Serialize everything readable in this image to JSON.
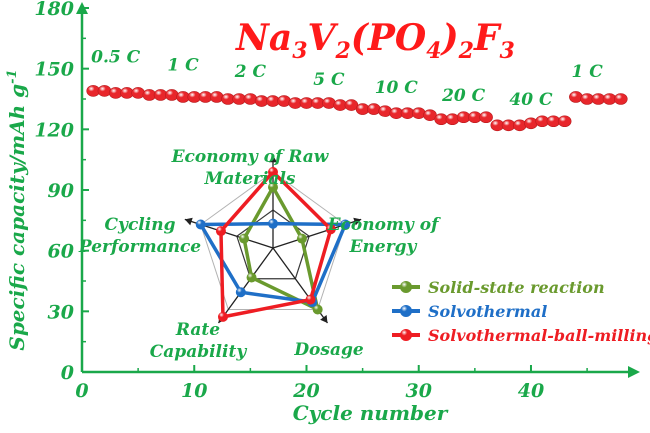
{
  "colors": {
    "axis": "#1aa84a",
    "title": "#ff1a1a",
    "capacity_dots": "#e8262b",
    "rate_labels": "#1aa84a",
    "web": "#222222",
    "radar_labels": "#1aa84a",
    "solid_state": "#6a9a2e",
    "solvothermal": "#1f6fc7",
    "ball_milling": "#ee1d23"
  },
  "chart_data": [
    {
      "type": "scatter",
      "title": {
        "base1": "Na",
        "sub1": "3",
        "base2": "V",
        "sub2": "2",
        "base3": "(PO",
        "sub3": "4",
        "base4": ")",
        "sub4": "2",
        "base5": "F",
        "sub5": "3"
      },
      "xlabel": "Cycle number",
      "ylabel": "Specific capacity/mAh g",
      "ylabel_sup": "-1",
      "xlim": [
        0,
        49
      ],
      "ylim": [
        0,
        180
      ],
      "xticks": [
        "0",
        "10",
        "20",
        "30",
        "40"
      ],
      "xtick_values": [
        0,
        10,
        20,
        30,
        40
      ],
      "yticks": [
        "0",
        "30",
        "60",
        "90",
        "120",
        "150",
        "180"
      ],
      "ytick_values": [
        0,
        30,
        60,
        90,
        120,
        150,
        180
      ],
      "grid": false,
      "series": [
        {
          "x": [
            1,
            2,
            3,
            4,
            5,
            6,
            7,
            8,
            9,
            10,
            11,
            12,
            13,
            14,
            15,
            16,
            17,
            18,
            19,
            20,
            21,
            22,
            23,
            24,
            25,
            26,
            27,
            28,
            29,
            30,
            31,
            32,
            33,
            34,
            35,
            36,
            37,
            38,
            39,
            40,
            41,
            42,
            43,
            44,
            45,
            46,
            47,
            48
          ],
          "y": [
            139,
            139,
            138,
            138,
            138,
            137,
            137,
            137,
            136,
            136,
            136,
            136,
            135,
            135,
            135,
            134,
            134,
            134,
            133,
            133,
            133,
            133,
            132,
            132,
            130,
            130,
            129,
            128,
            128,
            128,
            127,
            125,
            125,
            126,
            126,
            126,
            122,
            122,
            122,
            123,
            124,
            124,
            124,
            136,
            135,
            135,
            135,
            135
          ]
        }
      ],
      "rate_annotations": [
        {
          "label": "0.5 C",
          "x": 3,
          "y": 153
        },
        {
          "label": "1 C",
          "x": 9,
          "y": 149
        },
        {
          "label": "2 C",
          "x": 15,
          "y": 146
        },
        {
          "label": "5 C",
          "x": 22,
          "y": 142
        },
        {
          "label": "10 C",
          "x": 28,
          "y": 138
        },
        {
          "label": "20 C",
          "x": 34,
          "y": 134
        },
        {
          "label": "40 C",
          "x": 40,
          "y": 132
        },
        {
          "label": "1 C",
          "x": 45,
          "y": 146
        }
      ]
    },
    {
      "type": "radar",
      "axes": [
        "Economy of Raw Materials",
        "Economy of Energy",
        "Dosage",
        "Rate Capability",
        "Cycling Performance"
      ],
      "axis_labels": [
        {
          "lines": [
            "Economy of Raw",
            "Materials"
          ]
        },
        {
          "lines": [
            "Economy of",
            "Energy"
          ]
        },
        {
          "lines": [
            "Dosage"
          ]
        },
        {
          "lines": [
            "Rate",
            "Capability"
          ]
        },
        {
          "lines": [
            "Cycling",
            "Performance"
          ]
        }
      ],
      "scale_max": 1,
      "series": [
        {
          "name": "Solid-state reaction",
          "values": [
            0.8,
            0.4,
            1.0,
            0.48,
            0.4
          ]
        },
        {
          "name": "Solvothermal",
          "values": [
            0.32,
            1.0,
            0.88,
            0.72,
            1.0
          ]
        },
        {
          "name": "Solvothermal-ball-milling",
          "values": [
            1.0,
            0.8,
            0.84,
            1.12,
            0.72
          ]
        }
      ],
      "legend": {
        "placement": "right",
        "entries": [
          "Solid-state reaction",
          "Solvothermal",
          "Solvothermal-ball-milling"
        ]
      }
    }
  ]
}
